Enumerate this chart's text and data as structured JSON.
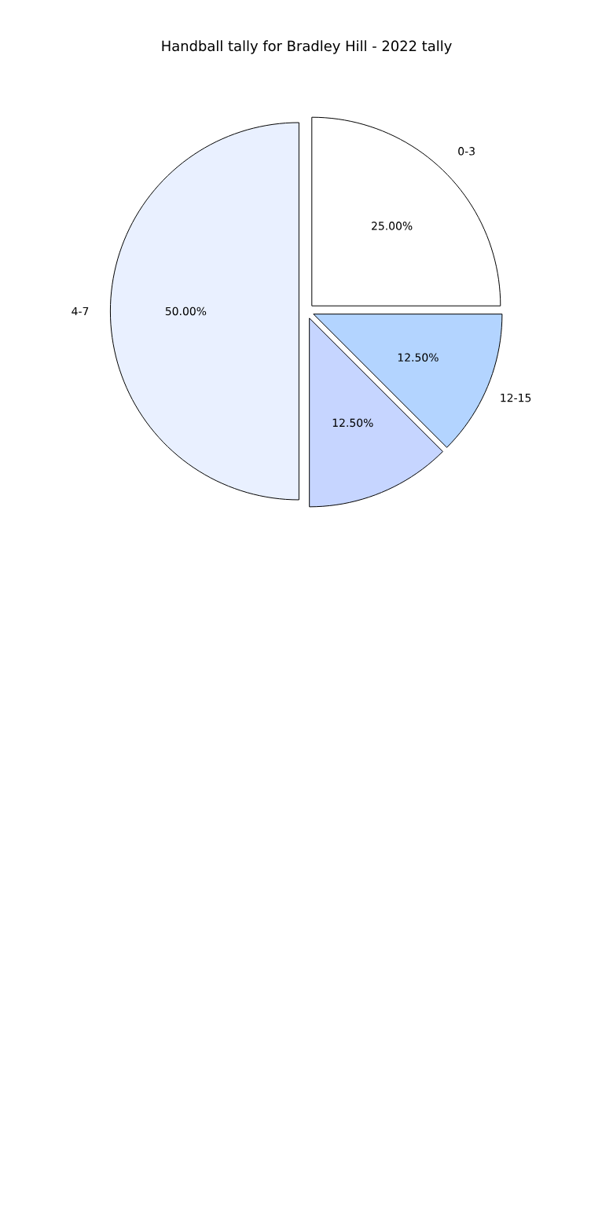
{
  "chart_data": {
    "type": "pie",
    "title": "Handball tally for Bradley Hill - 2022 tally",
    "categories": [
      "0-3",
      "12-15",
      null,
      "4-7"
    ],
    "values": [
      25,
      12.5,
      12.5,
      50
    ],
    "colors": [
      "#ffffff",
      "#b3d4ff",
      "#c6d5ff",
      "#e9f0ff"
    ],
    "value_labels": [
      "25.00%",
      "12.50%",
      "12.50%",
      "50.00%"
    ]
  }
}
